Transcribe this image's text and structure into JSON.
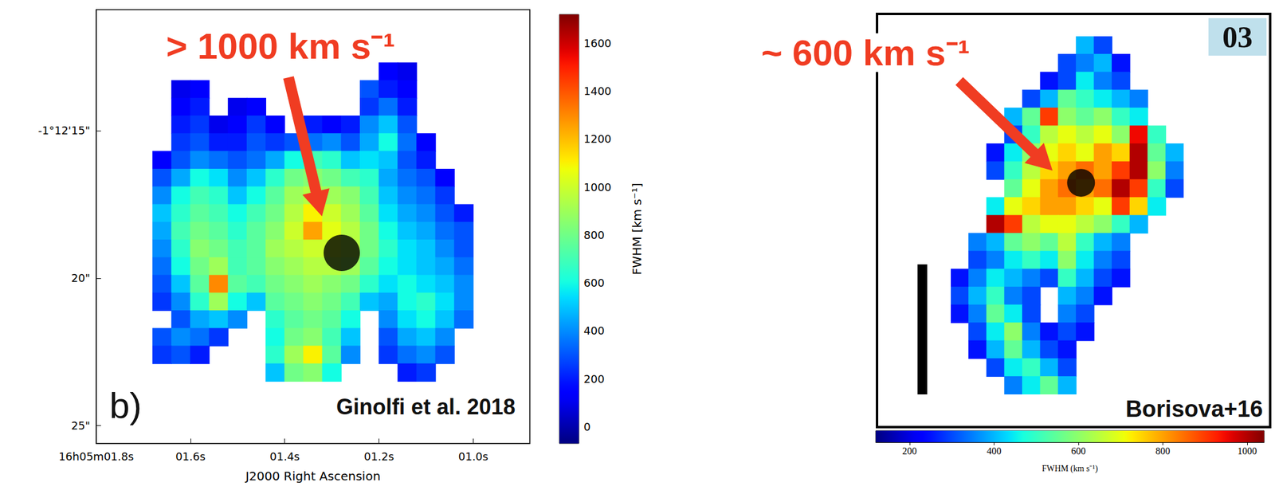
{
  "chart_data": [
    {
      "type": "heatmap",
      "x": [
        1.66,
        1.62,
        1.58,
        1.54,
        1.5,
        1.46,
        1.42,
        1.38,
        1.34,
        1.3,
        1.26,
        1.22,
        1.18,
        1.14,
        1.1,
        1.06,
        1.02
      ],
      "y": [
        13,
        13.6,
        14.2,
        14.8,
        15.4,
        16,
        16.6,
        17.2,
        17.8,
        18.4,
        19,
        19.6,
        20.2,
        20.8,
        21.4,
        22,
        22.6,
        23.2
      ],
      "cells": [
        [
          null,
          null,
          null,
          null,
          null,
          null,
          null,
          null,
          null,
          null,
          null,
          null,
          150,
          100,
          null,
          null,
          null
        ],
        [
          null,
          100,
          150,
          null,
          null,
          null,
          null,
          null,
          null,
          null,
          null,
          300,
          200,
          150,
          null,
          null,
          null
        ],
        [
          null,
          150,
          200,
          null,
          100,
          150,
          null,
          null,
          null,
          null,
          null,
          250,
          350,
          200,
          null,
          null,
          null
        ],
        [
          null,
          200,
          250,
          100,
          150,
          250,
          150,
          null,
          200,
          150,
          200,
          400,
          500,
          300,
          null,
          null,
          null
        ],
        [
          null,
          250,
          300,
          200,
          200,
          300,
          250,
          300,
          350,
          400,
          300,
          450,
          600,
          350,
          150,
          null,
          null
        ],
        [
          150,
          300,
          400,
          350,
          300,
          350,
          450,
          600,
          700,
          650,
          500,
          550,
          500,
          300,
          200,
          null,
          null
        ],
        [
          300,
          450,
          600,
          550,
          400,
          500,
          650,
          800,
          850,
          800,
          700,
          650,
          450,
          350,
          300,
          150,
          null
        ],
        [
          400,
          600,
          700,
          650,
          500,
          600,
          750,
          900,
          950,
          900,
          850,
          700,
          500,
          400,
          350,
          250,
          null
        ],
        [
          500,
          650,
          750,
          700,
          600,
          700,
          800,
          950,
          1100,
          1000,
          900,
          750,
          550,
          450,
          400,
          300,
          200
        ],
        [
          450,
          700,
          800,
          750,
          650,
          750,
          850,
          1000,
          1250,
          1050,
          950,
          800,
          600,
          500,
          450,
          350,
          300
        ],
        [
          400,
          650,
          850,
          800,
          700,
          750,
          900,
          950,
          1000,
          1000,
          950,
          800,
          650,
          550,
          500,
          400,
          300
        ],
        [
          350,
          600,
          800,
          900,
          700,
          750,
          850,
          900,
          950,
          950,
          900,
          750,
          600,
          550,
          500,
          450,
          350
        ],
        [
          300,
          500,
          750,
          1300,
          750,
          700,
          800,
          850,
          900,
          850,
          800,
          650,
          550,
          600,
          550,
          500,
          400
        ],
        [
          250,
          400,
          650,
          900,
          600,
          500,
          750,
          800,
          850,
          800,
          700,
          500,
          450,
          600,
          650,
          550,
          400
        ],
        [
          null,
          300,
          450,
          500,
          400,
          null,
          650,
          750,
          800,
          750,
          600,
          null,
          400,
          550,
          600,
          500,
          350
        ],
        [
          300,
          400,
          350,
          250,
          null,
          null,
          600,
          800,
          850,
          700,
          500,
          null,
          300,
          450,
          500,
          400,
          null
        ],
        [
          250,
          300,
          200,
          null,
          null,
          null,
          650,
          900,
          1100,
          750,
          400,
          null,
          250,
          350,
          400,
          300,
          null
        ],
        [
          null,
          null,
          null,
          null,
          null,
          null,
          500,
          800,
          850,
          600,
          null,
          null,
          null,
          200,
          250,
          null,
          null
        ]
      ],
      "xlim": [
        1.8,
        0.88
      ],
      "ylim": [
        25.6,
        10.9
      ],
      "xticks": [
        {
          "value": 1.8,
          "label": "16h05m01.8s"
        },
        {
          "value": 1.6,
          "label": "01.6s"
        },
        {
          "value": 1.4,
          "label": "01.4s"
        },
        {
          "value": 1.2,
          "label": "01.2s"
        },
        {
          "value": 1.0,
          "label": "01.0s"
        }
      ],
      "yticks": [
        {
          "value": 15,
          "label": "-1°12'15\""
        },
        {
          "value": 20,
          "label": "20\""
        },
        {
          "value": 25,
          "label": "25\""
        }
      ],
      "xlabel": "J2000 Right Ascension",
      "colorbar": {
        "label": "FWHM [km s⁻¹]",
        "range": [
          -70,
          1720
        ],
        "ticks": [
          0,
          200,
          400,
          600,
          800,
          1000,
          1200,
          1400,
          1600
        ]
      },
      "markers": [
        {
          "x": 1.279,
          "y": 19.14
        }
      ],
      "annotations": [
        {
          "text": "> 1000 km s⁻¹",
          "x": 1.321,
          "y": 17.9
        }
      ],
      "panel_label": "b)",
      "source": "Ginolfi et al. 2018"
    },
    {
      "type": "heatmap",
      "cells": [
        [
          null,
          null,
          null,
          null,
          null,
          null,
          null,
          400,
          300,
          null,
          null,
          null,
          null
        ],
        [
          null,
          null,
          null,
          null,
          null,
          null,
          300,
          350,
          400,
          250,
          null,
          null,
          null
        ],
        [
          null,
          null,
          null,
          null,
          null,
          250,
          300,
          450,
          350,
          300,
          null,
          null,
          null
        ],
        [
          null,
          null,
          null,
          null,
          300,
          400,
          550,
          500,
          450,
          400,
          350,
          null,
          null
        ],
        [
          null,
          null,
          null,
          400,
          550,
          900,
          600,
          550,
          600,
          500,
          450,
          null,
          null
        ],
        [
          null,
          null,
          null,
          300,
          500,
          650,
          700,
          650,
          700,
          600,
          950,
          500,
          null
        ],
        [
          null,
          null,
          250,
          450,
          600,
          700,
          750,
          700,
          800,
          750,
          1000,
          550,
          400
        ],
        [
          null,
          null,
          300,
          500,
          650,
          750,
          800,
          850,
          800,
          900,
          1000,
          600,
          350
        ],
        [
          null,
          null,
          null,
          550,
          700,
          800,
          850,
          800,
          850,
          1000,
          900,
          500,
          300
        ],
        [
          null,
          null,
          450,
          700,
          750,
          800,
          800,
          750,
          700,
          900,
          750,
          450,
          null
        ],
        [
          null,
          null,
          1000,
          900,
          650,
          700,
          700,
          650,
          600,
          500,
          400,
          null,
          null
        ],
        [
          null,
          350,
          400,
          550,
          600,
          550,
          650,
          500,
          400,
          350,
          null,
          null,
          null
        ],
        [
          null,
          300,
          350,
          450,
          500,
          450,
          600,
          450,
          350,
          300,
          null,
          null,
          null
        ],
        [
          250,
          350,
          450,
          400,
          350,
          300,
          500,
          400,
          300,
          250,
          null,
          null,
          null
        ],
        [
          300,
          400,
          500,
          350,
          300,
          null,
          400,
          350,
          250,
          null,
          null,
          null,
          null
        ],
        [
          250,
          350,
          550,
          450,
          300,
          null,
          350,
          300,
          null,
          null,
          null,
          null,
          null
        ],
        [
          null,
          300,
          450,
          600,
          350,
          250,
          300,
          250,
          null,
          null,
          null,
          null,
          null
        ],
        [
          null,
          250,
          400,
          550,
          400,
          300,
          250,
          null,
          null,
          null,
          null,
          null,
          null
        ],
        [
          null,
          null,
          300,
          450,
          500,
          400,
          300,
          null,
          null,
          null,
          null,
          null,
          null
        ],
        [
          null,
          null,
          null,
          350,
          450,
          550,
          400,
          null,
          null,
          null,
          null,
          null,
          null
        ]
      ],
      "tick_labels": false,
      "colorbar": {
        "label": "FWHM (km s⁻¹)",
        "range": [
          120,
          1040
        ],
        "ticks": [
          200,
          400,
          600,
          800,
          1000
        ]
      },
      "markers": [
        {
          "x": 6.77,
          "y": 7.68
        }
      ],
      "annotations": [
        {
          "text": "~ 600 km s⁻¹",
          "x": 5.18,
          "y": 7.0
        }
      ],
      "panel_label": "03",
      "source": "Borisova+16"
    }
  ]
}
